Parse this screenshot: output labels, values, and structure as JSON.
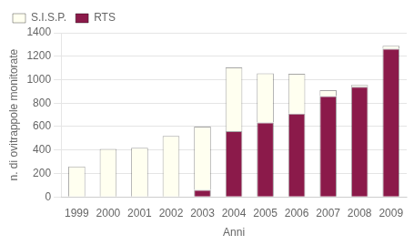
{
  "chart_data": {
    "type": "bar",
    "stacked": true,
    "categories": [
      "1999",
      "2000",
      "2001",
      "2002",
      "2003",
      "2004",
      "2005",
      "2006",
      "2007",
      "2008",
      "2009"
    ],
    "series": [
      {
        "name": "RTS",
        "color": "#8B1A4A",
        "values": [
          0,
          0,
          0,
          0,
          60,
          560,
          635,
          710,
          860,
          940,
          1265
        ]
      },
      {
        "name": "S.I.S.P.",
        "color": "#FFFFF0",
        "values": [
          260,
          410,
          420,
          520,
          540,
          545,
          420,
          340,
          50,
          15,
          25
        ]
      }
    ],
    "xlabel": "Anni",
    "ylabel": "n. di ovitrappole monitorate",
    "ylim": [
      0,
      1400
    ],
    "yticks": [
      0,
      200,
      400,
      600,
      800,
      1000,
      1200,
      1400
    ],
    "grid": true,
    "legend": "upper left"
  }
}
